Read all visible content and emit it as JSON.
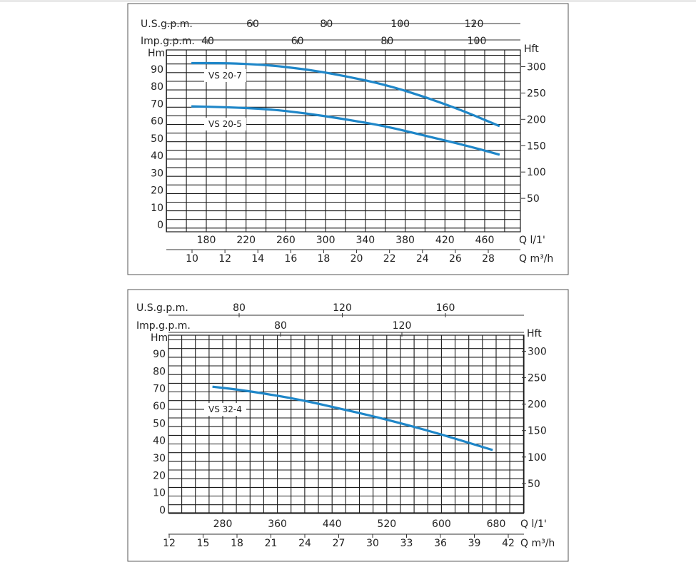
{
  "chart_data": [
    {
      "type": "line",
      "labels": {
        "usgpm": "U.S.g.p.m.",
        "impgpm": "Imp.g.p.m.",
        "hm": "Hm",
        "hft": "Hft",
        "q_lmin": "Q  l/1'",
        "q_m3h": "Q  m³/h"
      },
      "usgpm_ticks": [
        "60",
        "80",
        "100",
        "120"
      ],
      "impgpm_ticks": [
        "40",
        "60",
        "80",
        "100"
      ],
      "hm_ticks": [
        "0",
        "10",
        "20",
        "30",
        "40",
        "50",
        "60",
        "70",
        "80",
        "90"
      ],
      "hft_ticks": [
        "50",
        "100",
        "150",
        "200",
        "250",
        "300"
      ],
      "q_lmin_ticks": [
        "180",
        "220",
        "260",
        "300",
        "340",
        "380",
        "420",
        "460"
      ],
      "q_m3h_ticks": [
        "10",
        "12",
        "14",
        "16",
        "18",
        "20",
        "22",
        "24",
        "26",
        "28"
      ],
      "x_lmin_range": [
        140,
        500
      ],
      "y_range": [
        0,
        96
      ],
      "grid": true,
      "series": [
        {
          "name": "VS 20-7",
          "color": "#1e86c8",
          "points": [
            [
              165,
              93.5
            ],
            [
              200,
              93.5
            ],
            [
              240,
              92.5
            ],
            [
              280,
              90
            ],
            [
              320,
              86
            ],
            [
              360,
              81
            ],
            [
              400,
              74
            ],
            [
              440,
              65.5
            ],
            [
              475,
              57
            ]
          ]
        },
        {
          "name": "VS 20-5",
          "color": "#1e86c8",
          "points": [
            [
              165,
              68.5
            ],
            [
              200,
              68
            ],
            [
              240,
              67
            ],
            [
              280,
              64.5
            ],
            [
              320,
              61
            ],
            [
              360,
              57
            ],
            [
              400,
              51.5
            ],
            [
              440,
              46
            ],
            [
              475,
              40.5
            ]
          ]
        }
      ]
    },
    {
      "type": "line",
      "labels": {
        "usgpm": "U.S.g.p.m.",
        "impgpm": "Imp.g.p.m.",
        "hm": "Hm",
        "hft": "Hft",
        "q_lmin": "Q  l/1'",
        "q_m3h": "Q  m³/h"
      },
      "usgpm_ticks": [
        "80",
        "120",
        "160"
      ],
      "impgpm_ticks": [
        "80",
        "120"
      ],
      "hm_ticks": [
        "0",
        "10",
        "20",
        "30",
        "40",
        "50",
        "60",
        "70",
        "80",
        "90"
      ],
      "hft_ticks": [
        "50",
        "100",
        "150",
        "200",
        "250",
        "300"
      ],
      "q_lmin_ticks": [
        "280",
        "360",
        "440",
        "520",
        "600",
        "680"
      ],
      "q_m3h_ticks": [
        "12",
        "15",
        "18",
        "21",
        "24",
        "27",
        "30",
        "33",
        "36",
        "39",
        "42"
      ],
      "x_lmin_range": [
        200,
        710
      ],
      "y_range": [
        0,
        96
      ],
      "grid": true,
      "series": [
        {
          "name": "VS 32-4",
          "color": "#1e86c8",
          "points": [
            [
              265,
              71
            ],
            [
              300,
              69.5
            ],
            [
              350,
              66.5
            ],
            [
              400,
              63
            ],
            [
              450,
              58.5
            ],
            [
              500,
              54
            ],
            [
              550,
              49
            ],
            [
              600,
              43.5
            ],
            [
              650,
              37.5
            ],
            [
              675,
              34.5
            ]
          ]
        }
      ]
    }
  ]
}
